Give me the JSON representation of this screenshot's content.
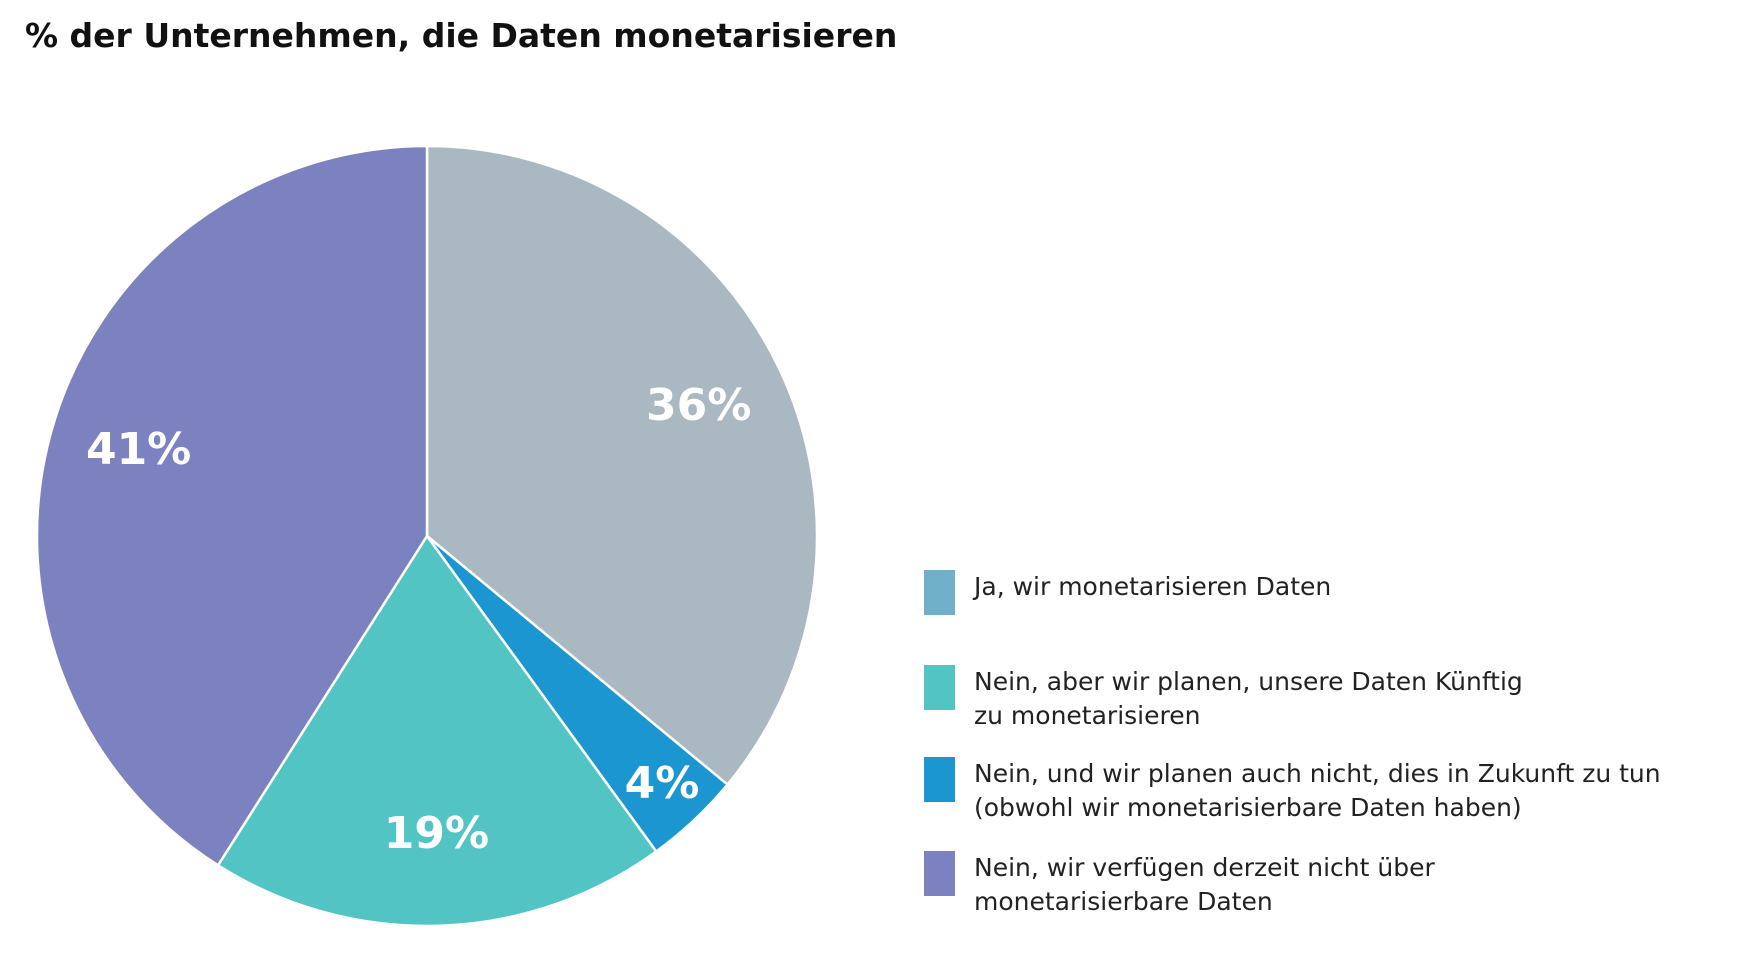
{
  "chart_data": {
    "type": "pie",
    "title": "% der Unternehmen, die Daten monetarisieren",
    "categories": [
      "Ja, wir monetarisieren Daten",
      "Nein, aber wir planen, unsere Daten Künftig\nzu monetarisieren",
      "Nein, und wir planen auch nicht, dies in Zukunft zu tun\n(obwohl wir monetarisierbare Daten haben)",
      "Nein, wir verfügen derzeit nicht über\nmonetarisierbare Daten"
    ],
    "values": [
      36,
      19,
      4,
      41
    ],
    "value_labels": [
      "36%",
      "19%",
      "4%",
      "41%"
    ],
    "colors": [
      "#a9b8c1",
      "#53c4c4",
      "#1c96d1",
      "#7c82bf"
    ],
    "legend_colors": [
      "#6fafc7",
      "#53c4c4",
      "#1c96d1",
      "#7c82bf"
    ],
    "slice_order": [
      0,
      2,
      1,
      3
    ]
  }
}
